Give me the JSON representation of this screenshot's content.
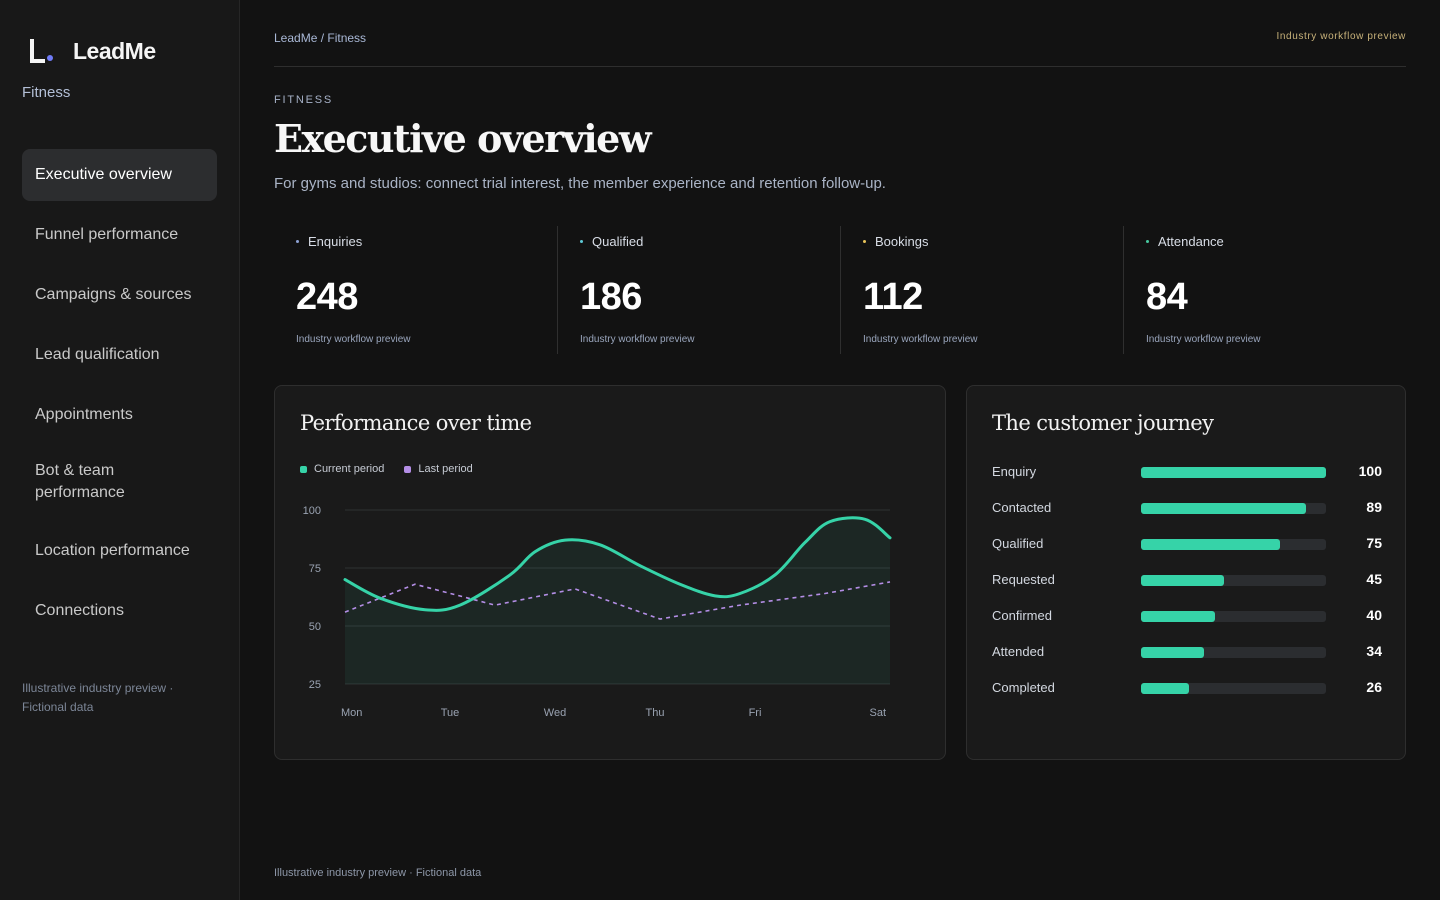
{
  "brand": {
    "name": "LeadMe",
    "subtitle": "Fitness"
  },
  "sidebar": {
    "items": [
      {
        "label": "Executive overview",
        "active": true
      },
      {
        "label": "Funnel performance",
        "active": false
      },
      {
        "label": "Campaigns & sources",
        "active": false
      },
      {
        "label": "Lead qualification",
        "active": false
      },
      {
        "label": "Appointments",
        "active": false
      },
      {
        "label": "Bot & team performance",
        "active": false
      },
      {
        "label": "Location performance",
        "active": false
      },
      {
        "label": "Connections",
        "active": false
      }
    ],
    "footer": "Illustrative industry preview · Fictional data"
  },
  "header": {
    "breadcrumb": "LeadMe / Fitness",
    "right_label": "Industry workflow preview"
  },
  "page": {
    "eyebrow": "FITNESS",
    "title": "Executive overview",
    "subtitle": "For gyms and studios: connect trial interest, the member experience and retention follow-up."
  },
  "kpis": [
    {
      "label": "Enquiries",
      "value": "248",
      "note": "Industry workflow preview",
      "dot_color": "#8ea3d6"
    },
    {
      "label": "Qualified",
      "value": "186",
      "note": "Industry workflow preview",
      "dot_color": "#5ec9d6"
    },
    {
      "label": "Bookings",
      "value": "112",
      "note": "Industry workflow preview",
      "dot_color": "#e8c45a"
    },
    {
      "label": "Attendance",
      "value": "84",
      "note": "Industry workflow preview",
      "dot_color": "#47c9a0"
    }
  ],
  "performance": {
    "title": "Performance over time"
  },
  "journey": {
    "title": "The customer journey",
    "rows": [
      {
        "label": "Enquiry",
        "value": 100
      },
      {
        "label": "Contacted",
        "value": 89
      },
      {
        "label": "Qualified",
        "value": 75
      },
      {
        "label": "Requested",
        "value": 45
      },
      {
        "label": "Confirmed",
        "value": 40
      },
      {
        "label": "Attended",
        "value": 34
      },
      {
        "label": "Completed",
        "value": 26
      }
    ]
  },
  "footer": "Illustrative industry preview · Fictional data",
  "colors": {
    "accent": "#36d3a8",
    "last_period": "#b48ee6",
    "background": "#121212",
    "sidebar": "#181818"
  },
  "chart_data": {
    "type": "line",
    "title": "",
    "xlabel": "",
    "ylabel": "",
    "categories": [
      "Mon",
      "Tue",
      "Wed",
      "Thu",
      "Fri",
      "Sat"
    ],
    "series": [
      {
        "name": "Current period",
        "color": "#36d3a8",
        "style": "solid-area",
        "x": [
          0,
          0.35,
          0.8,
          1.15,
          1.65,
          1.9,
          2.2,
          2.55,
          2.95,
          3.35,
          3.7,
          3.95,
          4.3,
          4.6,
          4.85,
          5.2,
          5.45
        ],
        "y": [
          70,
          62,
          57,
          59,
          72,
          82,
          87,
          85,
          76,
          68,
          63,
          64,
          72,
          86,
          95,
          96,
          88
        ]
      },
      {
        "name": "Last period",
        "color": "#b48ee6",
        "style": "dashed",
        "x": [
          0,
          0.7,
          1.5,
          2.3,
          3.15,
          3.95,
          4.8,
          5.45
        ],
        "y": [
          56,
          68,
          59,
          66,
          53,
          59,
          64,
          69
        ]
      }
    ],
    "yticks": [
      25,
      50,
      75,
      100
    ],
    "ylim": [
      25,
      100
    ],
    "xlim": [
      0,
      5.45
    ],
    "grid": true,
    "legend": "top-left"
  }
}
